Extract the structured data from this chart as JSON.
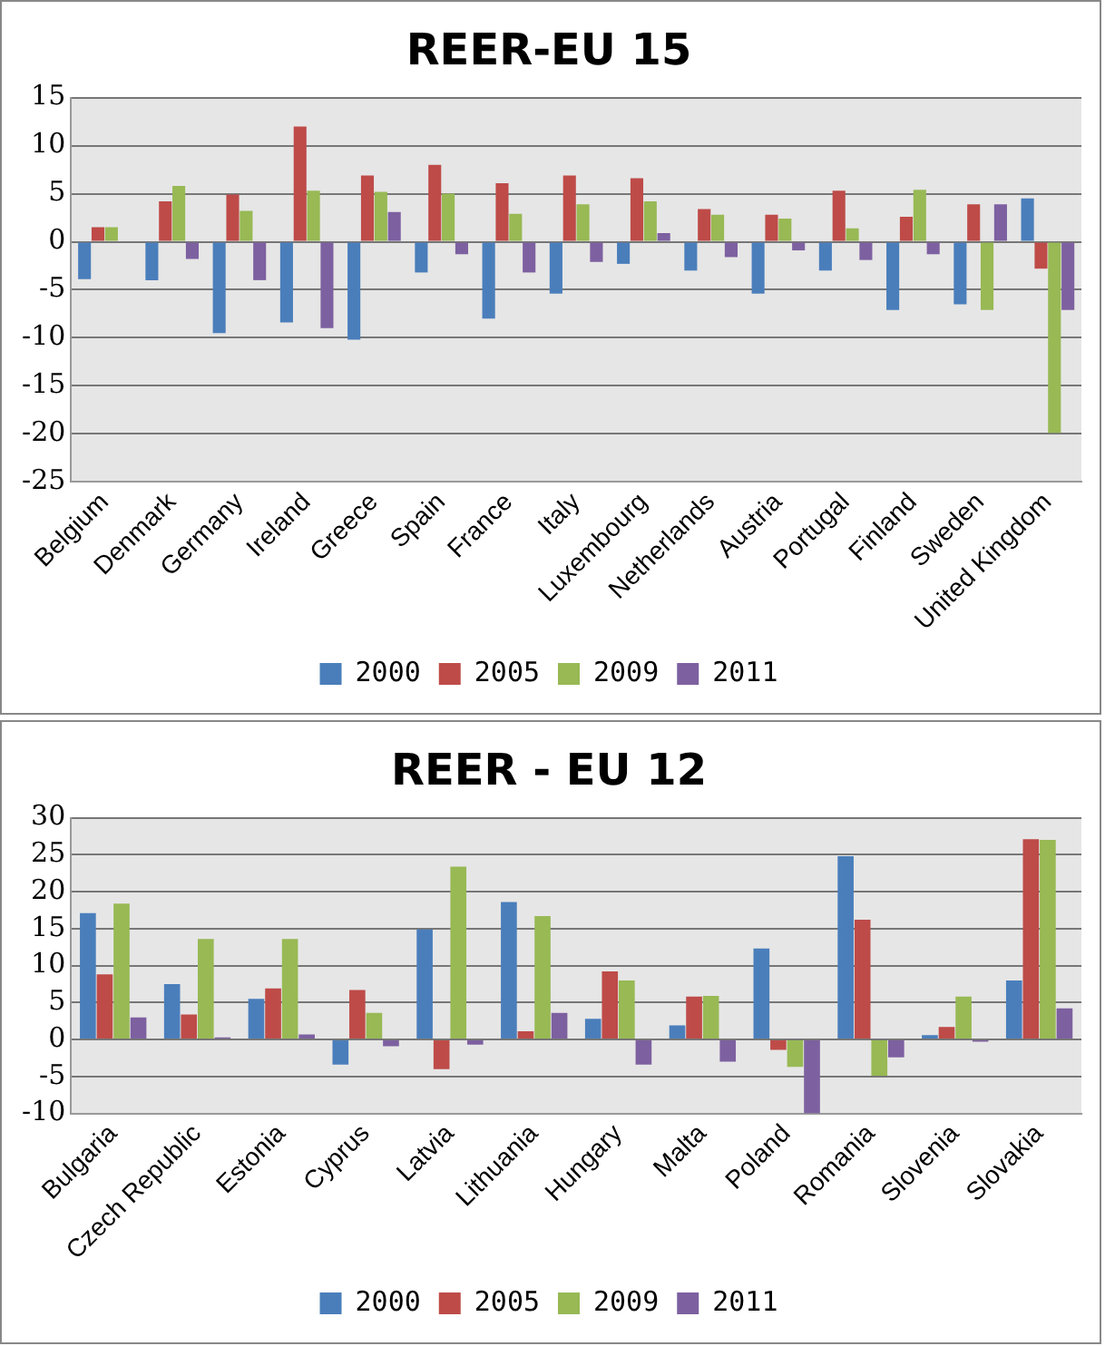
{
  "chart_data": [
    {
      "type": "bar",
      "title": "REER-EU 15",
      "categories": [
        "Belgium",
        "Denmark",
        "Germany",
        "Ireland",
        "Greece",
        "Spain",
        "France",
        "Italy",
        "Luxembourg",
        "Netherlands",
        "Austria",
        "Portugal",
        "Finland",
        "Sweden",
        "United Kingdom"
      ],
      "series": [
        {
          "name": "2000",
          "color": "#4a7ebb",
          "values": [
            -3.9,
            -4,
            -9.5,
            -8.4,
            -10.2,
            -3.2,
            -8,
            -5.4,
            -2.3,
            -3,
            -5.4,
            -3,
            -7.1,
            -6.5,
            4.5
          ]
        },
        {
          "name": "2005",
          "color": "#be4b48",
          "values": [
            1.5,
            4.2,
            4.9,
            12,
            6.9,
            8,
            6.1,
            6.9,
            6.6,
            3.4,
            2.8,
            5.3,
            2.6,
            3.9,
            -2.8
          ]
        },
        {
          "name": "2009",
          "color": "#98b954",
          "values": [
            1.5,
            5.8,
            3.2,
            5.3,
            5.2,
            5,
            2.9,
            3.9,
            4.2,
            2.8,
            2.4,
            1.4,
            5.4,
            -7.1,
            -19.9
          ]
        },
        {
          "name": "2011",
          "color": "#7d60a0",
          "values": [
            null,
            -1.8,
            -4,
            -9,
            3.1,
            -1.3,
            -3.2,
            -2.1,
            0.9,
            -1.6,
            -0.9,
            -1.9,
            -1.3,
            3.9,
            -7.1
          ]
        }
      ],
      "ylim": [
        -25,
        15
      ],
      "yticks": [
        -25,
        -20,
        -15,
        -10,
        -5,
        0,
        5,
        10,
        15
      ],
      "grid": "y",
      "legend": "bottom"
    },
    {
      "type": "bar",
      "title": "REER - EU 12",
      "categories": [
        "Bulgaria",
        "Czech Republic",
        "Estonia",
        "Cyprus",
        "Latvia",
        "Lithuania",
        "Hungary",
        "Malta",
        "Poland",
        "Romania",
        "Slovenia",
        "Slovakia"
      ],
      "series": [
        {
          "name": "2000",
          "color": "#4a7ebb",
          "values": [
            17.1,
            7.5,
            5.5,
            -3.4,
            14.9,
            18.6,
            2.8,
            1.9,
            12.3,
            24.8,
            0.6,
            8
          ]
        },
        {
          "name": "2005",
          "color": "#be4b48",
          "values": [
            8.8,
            3.4,
            6.9,
            6.7,
            -4,
            1.1,
            9.2,
            5.8,
            -1.4,
            16.2,
            1.7,
            27.1
          ]
        },
        {
          "name": "2009",
          "color": "#98b954",
          "values": [
            18.4,
            13.6,
            13.6,
            3.6,
            23.4,
            16.7,
            8,
            5.9,
            -3.7,
            -4.9,
            5.8,
            27
          ]
        },
        {
          "name": "2011",
          "color": "#7d60a0",
          "values": [
            3,
            0.3,
            0.7,
            -0.9,
            -0.7,
            3.6,
            -3.4,
            -3,
            -10,
            -2.4,
            -0.3,
            4.2
          ]
        }
      ],
      "ylim": [
        -10,
        30
      ],
      "yticks": [
        -10,
        -5,
        0,
        5,
        10,
        15,
        20,
        25,
        30
      ],
      "grid": "y",
      "legend": "bottom"
    }
  ]
}
